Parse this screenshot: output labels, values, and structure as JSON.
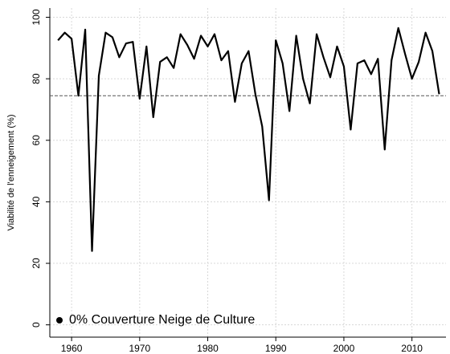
{
  "chart_data": {
    "type": "line",
    "y_label": "Viabilité de l'enneigement (%)",
    "x": [
      1958,
      1959,
      1960,
      1961,
      1962,
      1963,
      1964,
      1965,
      1966,
      1967,
      1968,
      1969,
      1970,
      1971,
      1972,
      1973,
      1974,
      1975,
      1976,
      1977,
      1978,
      1979,
      1980,
      1981,
      1982,
      1983,
      1984,
      1985,
      1986,
      1987,
      1988,
      1989,
      1990,
      1991,
      1992,
      1993,
      1994,
      1995,
      1996,
      1997,
      1998,
      1999,
      2000,
      2001,
      2002,
      2003,
      2004,
      2005,
      2006,
      2007,
      2008,
      2009,
      2010,
      2011,
      2012,
      2013,
      2014
    ],
    "series": [
      {
        "name": "0% Couverture Neige de Culture",
        "color": "#000000",
        "values": [
          92.5,
          95,
          93,
          74.5,
          96,
          24,
          81,
          95,
          93.5,
          87,
          91.5,
          92,
          73.5,
          90.5,
          67.5,
          85.5,
          87,
          83.5,
          94.5,
          91,
          86.5,
          94,
          90.5,
          94.5,
          86,
          89,
          72.5,
          85,
          89,
          75,
          64.5,
          40.5,
          92.5,
          85,
          69.5,
          94,
          80,
          72,
          94.5,
          87,
          80.5,
          90.5,
          84,
          63.5,
          85,
          86,
          81.5,
          86.5,
          57,
          86,
          96.5,
          88,
          80,
          85.5,
          95,
          89,
          75
        ]
      }
    ],
    "reference_line": 74.5,
    "xlim": [
      1956.8,
      2015
    ],
    "xticks": [
      1960,
      1970,
      1980,
      1990,
      2000,
      2010
    ],
    "ylim": [
      -4,
      103
    ],
    "yticks": [
      0,
      20,
      40,
      60,
      80,
      100
    ],
    "grid": true,
    "legend": "lower left"
  }
}
